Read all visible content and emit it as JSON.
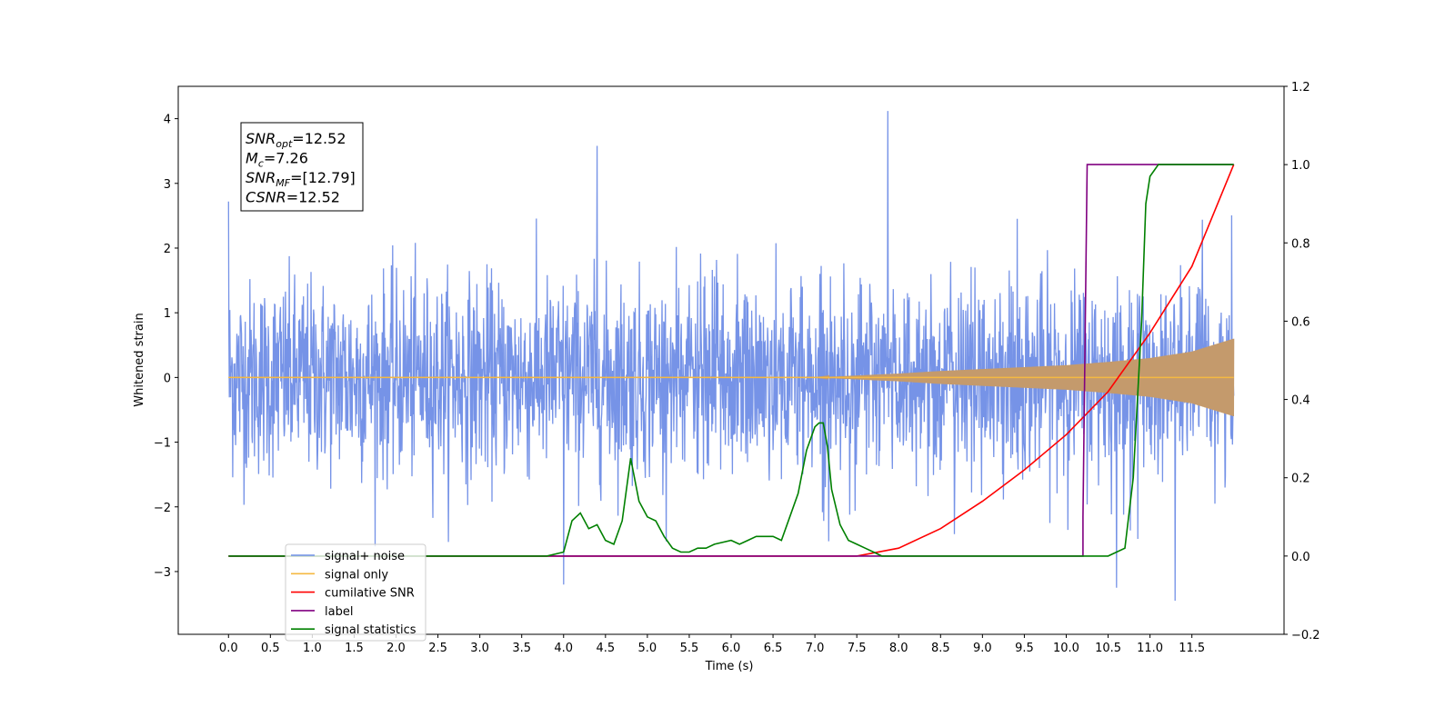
{
  "chart_data": {
    "type": "line",
    "xlabel": "Time (s)",
    "ylabel": "Whitened strain",
    "xlim": [
      -0.6,
      12.6
    ],
    "ylim": [
      -3.97,
      4.5
    ],
    "y2lim": [
      -0.2,
      1.2
    ],
    "grid": false,
    "x_ticks": [
      "0.0",
      "0.5",
      "1.0",
      "1.5",
      "2.0",
      "2.5",
      "3.0",
      "3.5",
      "4.0",
      "4.5",
      "5.0",
      "5.5",
      "6.0",
      "6.5",
      "7.0",
      "7.5",
      "8.0",
      "8.5",
      "9.0",
      "9.5",
      "10.0",
      "10.5",
      "11.0",
      "11.5"
    ],
    "y_ticks": [
      "4",
      "3",
      "2",
      "1",
      "0",
      "−1",
      "−2",
      "−3"
    ],
    "y2_ticks": [
      "1.2",
      "1.0",
      "0.8",
      "0.6",
      "0.4",
      "0.2",
      "0.0",
      "−0.2"
    ],
    "legend": {
      "placement": "lower-left",
      "entries": [
        "signal+ noise",
        "signal only",
        "cumilative SNR",
        "label",
        "signal statistics"
      ]
    },
    "annotation_lines": [
      "=12.52",
      "=7.26",
      "=[12.79]",
      "=12.52"
    ],
    "annotation_symbols": [
      {
        "main": "SNR",
        "sub": "opt"
      },
      {
        "main": "M",
        "sub": "c"
      },
      {
        "main": "SNR",
        "sub": "MF"
      },
      {
        "main": "CSNR",
        "sub": ""
      }
    ],
    "series": [
      {
        "name": "signal+ noise",
        "color": "#6f8de6",
        "axis": "left",
        "x_range": [
          0.0,
          12.0
        ],
        "std": 0.75,
        "notable_peaks": [
          [
            0.0,
            2.72
          ],
          [
            4.4,
            3.58
          ],
          [
            7.87,
            4.12
          ],
          [
            11.3,
            -3.45
          ],
          [
            10.6,
            -3.25
          ],
          [
            4.0,
            -3.2
          ]
        ]
      },
      {
        "name": "signal only",
        "color": "#f5b942",
        "axis": "left",
        "envelope_x": [
          0.0,
          7.0,
          7.5,
          8.0,
          8.5,
          9.0,
          9.5,
          10.0,
          10.5,
          11.0,
          11.5,
          12.0
        ],
        "envelope_y": [
          0.0,
          0.0,
          0.03,
          0.06,
          0.1,
          0.13,
          0.16,
          0.19,
          0.24,
          0.3,
          0.4,
          0.6
        ]
      },
      {
        "name": "cumilative SNR",
        "color": "#ff0000",
        "axis": "right",
        "x": [
          0.0,
          7.5,
          8.0,
          8.5,
          9.0,
          9.5,
          10.0,
          10.5,
          11.0,
          11.5,
          12.0
        ],
        "y": [
          0.0,
          0.0,
          0.02,
          0.07,
          0.14,
          0.22,
          0.31,
          0.42,
          0.57,
          0.74,
          1.0
        ]
      },
      {
        "name": "label",
        "color": "#800080",
        "axis": "right",
        "x": [
          0.0,
          10.2,
          10.2,
          10.25,
          12.0
        ],
        "y": [
          0.0,
          0.0,
          0.1,
          1.0,
          1.0
        ]
      },
      {
        "name": "signal statistics",
        "color": "#008000",
        "axis": "right",
        "x": [
          0.0,
          3.8,
          4.0,
          4.1,
          4.2,
          4.3,
          4.4,
          4.5,
          4.6,
          4.7,
          4.8,
          4.9,
          5.0,
          5.1,
          5.2,
          5.3,
          5.4,
          5.5,
          5.6,
          5.7,
          5.8,
          6.0,
          6.1,
          6.2,
          6.3,
          6.4,
          6.5,
          6.6,
          6.7,
          6.8,
          6.9,
          7.0,
          7.05,
          7.1,
          7.15,
          7.2,
          7.3,
          7.4,
          7.5,
          7.6,
          7.7,
          7.8,
          8.0,
          8.2,
          10.5,
          10.7,
          10.8,
          10.9,
          10.95,
          11.0,
          11.1,
          11.5,
          12.0
        ],
        "y": [
          0.0,
          0.0,
          0.01,
          0.09,
          0.11,
          0.07,
          0.08,
          0.04,
          0.03,
          0.09,
          0.25,
          0.14,
          0.1,
          0.09,
          0.05,
          0.02,
          0.01,
          0.01,
          0.02,
          0.02,
          0.03,
          0.04,
          0.03,
          0.04,
          0.05,
          0.05,
          0.05,
          0.04,
          0.1,
          0.16,
          0.27,
          0.33,
          0.34,
          0.34,
          0.28,
          0.17,
          0.08,
          0.04,
          0.03,
          0.02,
          0.01,
          0.0,
          0.0,
          0.0,
          0.0,
          0.02,
          0.2,
          0.6,
          0.9,
          0.97,
          1.0,
          1.0,
          1.0
        ]
      }
    ]
  }
}
